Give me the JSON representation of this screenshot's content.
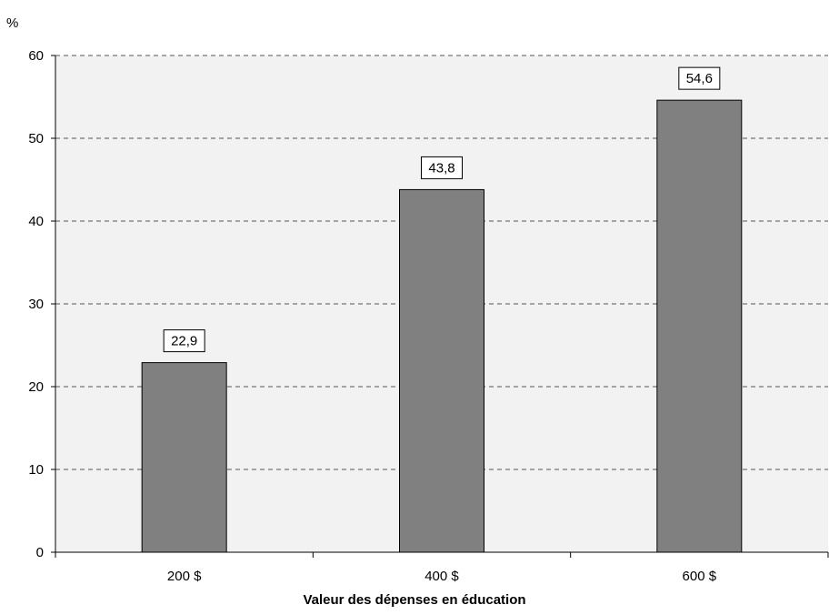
{
  "chart_data": {
    "type": "bar",
    "unit_label": "%",
    "categories": [
      "200 $",
      "400 $",
      "600 $"
    ],
    "values": [
      22.9,
      43.8,
      54.6
    ],
    "value_labels": [
      "22,9",
      "43,8",
      "54,6"
    ],
    "xlabel": "Valeur des dépenses en éducation",
    "ylabel": "%",
    "ylim": [
      0,
      60
    ],
    "yticks": [
      0,
      10,
      20,
      30,
      40,
      50,
      60
    ],
    "ytick_labels": [
      "0",
      "10",
      "20",
      "30",
      "40",
      "50",
      "60"
    ],
    "grid": true,
    "colors": {
      "bar": "#808080",
      "plot_background": "#f2f2f2",
      "grid": "#555555"
    }
  }
}
